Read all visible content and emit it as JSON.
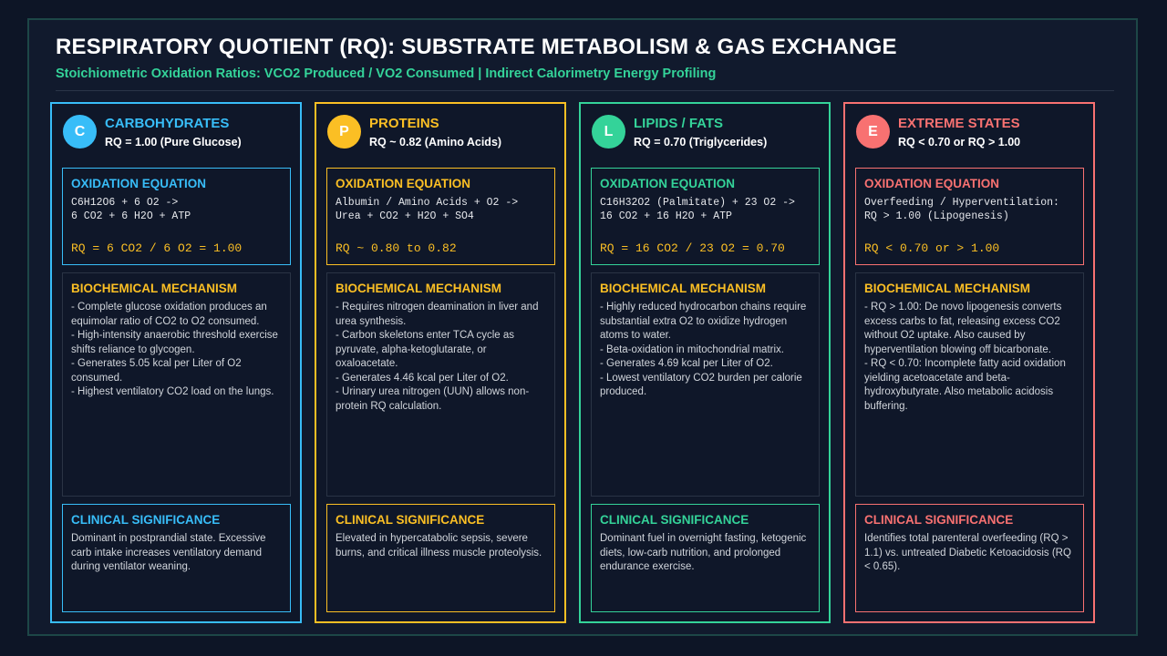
{
  "header": {
    "title": "RESPIRATORY QUOTIENT (RQ): SUBSTRATE METABOLISM & GAS EXCHANGE",
    "subtitle": "Stoichiometric Oxidation Ratios: VCO2 Produced / VO2 Consumed | Indirect Calorimetry Energy Profiling"
  },
  "cards": [
    {
      "badge": "C",
      "name": "CARBOHYDRATES",
      "rq": "RQ = 1.00 (Pure Glucose)",
      "equation": {
        "heading": "OXIDATION EQUATION",
        "lines": [
          "C6H12O6 + 6 O2 ->",
          "6 CO2 + 6 H2O + ATP"
        ],
        "result": "RQ = 6 CO2 / 6 O2 = 1.00"
      },
      "mechanism": {
        "heading": "BIOCHEMICAL MECHANISM",
        "items": [
          "- Complete glucose oxidation produces an equimolar ratio of CO2 to O2 consumed.",
          "- High-intensity anaerobic threshold exercise shifts reliance to glycogen.",
          "- Generates 5.05 kcal per Liter of O2 consumed.",
          "- Highest ventilatory CO2 load on the lungs."
        ]
      },
      "clinical": {
        "heading": "CLINICAL SIGNIFICANCE",
        "text": "Dominant in postprandial state. Excessive carb intake increases ventilatory demand during ventilator weaning."
      }
    },
    {
      "badge": "P",
      "name": "PROTEINS",
      "rq": "RQ ~ 0.82 (Amino Acids)",
      "equation": {
        "heading": "OXIDATION EQUATION",
        "lines": [
          "Albumin / Amino Acids + O2 ->",
          "Urea + CO2 + H2O + SO4"
        ],
        "result": "RQ ~ 0.80 to 0.82"
      },
      "mechanism": {
        "heading": "BIOCHEMICAL MECHANISM",
        "items": [
          "- Requires nitrogen deamination in liver and urea synthesis.",
          "- Carbon skeletons enter TCA cycle as pyruvate, alpha-ketoglutarate, or oxaloacetate.",
          "- Generates 4.46 kcal per Liter of O2.",
          "- Urinary urea nitrogen (UUN) allows non-protein RQ calculation."
        ]
      },
      "clinical": {
        "heading": "CLINICAL SIGNIFICANCE",
        "text": "Elevated in hypercatabolic sepsis, severe burns, and critical illness muscle proteolysis."
      }
    },
    {
      "badge": "L",
      "name": "LIPIDS / FATS",
      "rq": "RQ = 0.70 (Triglycerides)",
      "equation": {
        "heading": "OXIDATION EQUATION",
        "lines": [
          "C16H32O2 (Palmitate) + 23 O2 ->",
          "16 CO2 + 16 H2O + ATP"
        ],
        "result": "RQ = 16 CO2 / 23 O2 = 0.70"
      },
      "mechanism": {
        "heading": "BIOCHEMICAL MECHANISM",
        "items": [
          "- Highly reduced hydrocarbon chains require substantial extra O2 to oxidize hydrogen atoms to water.",
          "- Beta-oxidation in mitochondrial matrix.",
          "- Generates 4.69 kcal per Liter of O2.",
          "- Lowest ventilatory CO2 burden per calorie produced."
        ]
      },
      "clinical": {
        "heading": "CLINICAL SIGNIFICANCE",
        "text": "Dominant fuel in overnight fasting, ketogenic diets, low-carb nutrition, and prolonged endurance exercise."
      }
    },
    {
      "badge": "E",
      "name": "EXTREME STATES",
      "rq": "RQ < 0.70 or RQ > 1.00",
      "equation": {
        "heading": "OXIDATION EQUATION",
        "lines": [
          "Overfeeding / Hyperventilation:",
          "RQ > 1.00 (Lipogenesis)"
        ],
        "result": "RQ < 0.70 or > 1.00"
      },
      "mechanism": {
        "heading": "BIOCHEMICAL MECHANISM",
        "items": [
          "- RQ > 1.00: De novo lipogenesis converts excess carbs to fat, releasing excess CO2 without O2 uptake. Also caused by hyperventilation blowing off bicarbonate.",
          "- RQ < 0.70: Incomplete fatty acid oxidation yielding acetoacetate and beta-hydroxybutyrate. Also metabolic acidosis buffering."
        ]
      },
      "clinical": {
        "heading": "CLINICAL SIGNIFICANCE",
        "text": "Identifies total parenteral overfeeding (RQ > 1.1) vs. untreated Diabetic Ketoacidosis (RQ < 0.65)."
      }
    }
  ]
}
